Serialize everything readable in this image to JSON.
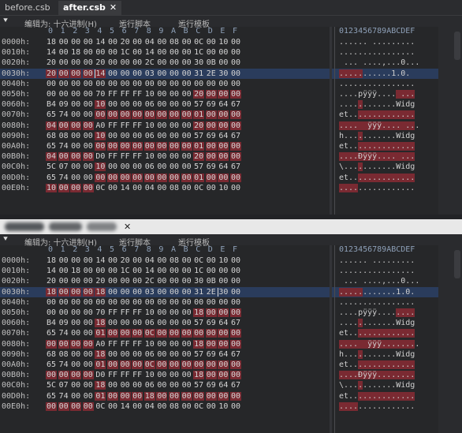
{
  "tabs_top": [
    {
      "label": "before.csb",
      "active": false
    },
    {
      "label": "after.csb",
      "active": true,
      "close": "✕"
    }
  ],
  "tab_bottom_close": "✕",
  "menu": {
    "arrow": "⯆",
    "edit_as": "编辑为: 十六进制(H)",
    "run_script": "运行脚本",
    "run_template": "运行模板",
    "chevron": "⌄"
  },
  "columns": [
    "0",
    "1",
    "2",
    "3",
    "4",
    "5",
    "6",
    "7",
    "8",
    "9",
    "A",
    "B",
    "C",
    "D",
    "E",
    "F"
  ],
  "ascii_header": "0123456789ABCDEF",
  "offsets": [
    "0000h:",
    "0010h:",
    "0020h:",
    "0030h:",
    "0040h:",
    "0050h:",
    "0060h:",
    "0070h:",
    "0080h:",
    "0090h:",
    "00A0h:",
    "00B0h:",
    "00C0h:",
    "00D0h:",
    "00E0h:"
  ],
  "pane_a": {
    "selected_row": 3,
    "rows": [
      "18 00 00 00 14 00 20 00 04 00 08 00 0C 00 10 00",
      "14 00 18 00 00 00 1C 00 14 00 00 00 1C 00 00 00",
      "20 00 00 00 20 00 00 00 2C 00 00 00 30 0B 00 00",
      "20 00 00 00 14 00 00 00 03 00 00 00 31 2E 30 00",
      "00 00 00 00 00 00 00 00 00 00 00 00 00 00 00 00",
      "00 00 00 00 70 FF FF FF 10 00 00 00 20 00 00 00",
      "B4 09 00 00 10 00 00 00 06 00 00 00 57 69 64 67",
      "65 74 00 00 00 00 00 00 00 00 00 00 01 00 00 00",
      "04 00 00 00 A0 FF FF FF 10 00 00 00 20 00 00 00",
      "68 08 00 00 10 00 00 00 06 00 00 00 57 69 64 67",
      "65 74 00 00 00 00 00 00 00 00 00 00 01 00 00 00",
      "04 00 00 00 D0 FF FF FF 10 00 00 00 20 00 00 00",
      "5C 07 00 00 10 00 00 00 06 00 00 00 57 69 64 67",
      "65 74 00 00 00 00 00 00 00 00 00 00 01 00 00 00",
      "10 00 00 00 0C 00 14 00 04 00 08 00 0C 00 10 00"
    ],
    "ascii": [
      "...... .........",
      "................",
      " ... ....,...0...",
      "...........1.0.",
      "................",
      "....pÿÿÿ.... ...",
      "............Widg",
      "et..............",
      "....  ÿÿÿ.... ...",
      "h...........Widg",
      "et..............",
      "....Ðÿÿÿ.... ...",
      "\\...........Widg",
      "et..............",
      "................"
    ]
  },
  "pane_b": {
    "selected_row": 3,
    "rows": [
      "18 00 00 00 14 00 20 00 04 00 08 00 0C 00 10 00",
      "14 00 18 00 00 00 1C 00 14 00 00 00 1C 00 00 00",
      "20 00 00 00 20 00 00 00 2C 00 00 00 30 0B 00 00",
      "18 00 00 00 18 00 00 00 03 00 00 00 31 2E 30 00",
      "00 00 00 00 00 00 00 00 00 00 00 00 00 00 00 00",
      "00 00 00 00 70 FF FF FF 10 00 00 00 18 00 00 00",
      "B4 09 00 00 18 00 00 00 06 00 00 00 57 69 64 67",
      "65 74 00 00 01 00 00 00 0C 00 00 00 00 00 00 00",
      "00 00 00 00 A0 FF FF FF 10 00 00 00 18 00 00 00",
      "68 08 00 00 18 00 00 00 06 00 00 00 57 69 64 67",
      "65 74 00 00 01 00 00 00 0C 00 00 00 00 00 00 00",
      "00 00 00 00 D0 FF FF FF 10 00 00 00 18 00 00 00",
      "5C 07 00 00 18 00 00 00 06 00 00 00 57 69 64 67",
      "65 74 00 00 01 00 00 00 18 00 00 00 00 00 00 00",
      "00 00 00 00 0C 00 14 00 04 00 08 00 0C 00 10 00"
    ],
    "ascii": [
      "...... .........",
      "................",
      " ... ....,...0...",
      "............1.0.",
      "................",
      "....pÿÿÿ........",
      "............Widg",
      "et..............",
      "....  ÿÿÿ........",
      "h...........Widg",
      "et..............",
      "....Ðÿÿÿ........",
      "\\...........Widg",
      "et..............",
      "................"
    ]
  },
  "colors": {
    "diff_highlight": "#7a2a32",
    "selection_row": "#2a3c5c",
    "background": "#262729"
  }
}
